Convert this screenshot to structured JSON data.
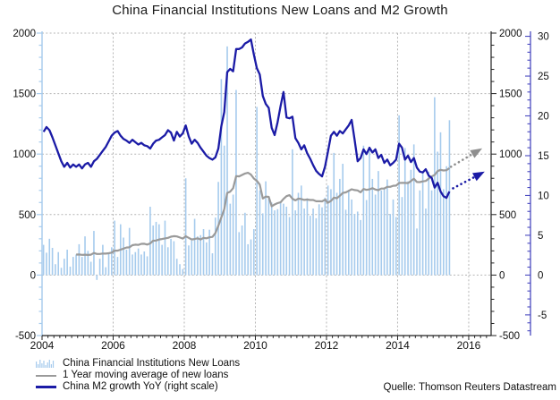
{
  "title": "China Financial Institutions New Loans and M2 Growth",
  "source": "Quelle: Thomson Reuters Datastream",
  "legend": [
    {
      "label": "China Financial Institutions New Loans",
      "type": "bars",
      "color": "#A6CBED"
    },
    {
      "label": "1 Year moving average of new loans",
      "type": "line",
      "color": "#9A9A9A"
    },
    {
      "label": "China M2 growth YoY (right scale)",
      "type": "line",
      "color": "#1B1BA6"
    }
  ],
  "chart_data": {
    "type": "bar",
    "title": "China Financial Institutions New Loans and M2 Growth",
    "x_start_year": 2004,
    "x_start_month": 1,
    "x_axis": {
      "tick_years": [
        2004,
        2006,
        2008,
        2010,
        2012,
        2014,
        2016
      ],
      "range": [
        2004,
        2016.63
      ],
      "vertical_grid_years": [
        2006,
        2008,
        2010,
        2012,
        2014,
        2016
      ]
    },
    "left_axis": {
      "tick_values": [
        -500,
        0,
        500,
        1000,
        1500,
        2000
      ],
      "range": [
        -500,
        2000
      ],
      "minor_step": 100,
      "axis_color": "#A6CBED",
      "grid_values": [
        0,
        500,
        1000,
        1500,
        2000
      ]
    },
    "right_axis_inner": {
      "tick_values": [
        -500,
        0,
        500,
        1000,
        1500,
        2000
      ],
      "range": [
        -500,
        2000
      ],
      "minor_step": 100,
      "axis_color": "#222222"
    },
    "right_axis_outer": {
      "tick_values": [
        -5,
        0,
        5,
        10,
        15,
        20,
        25,
        30
      ],
      "range": [
        -7.6,
        30.4
      ],
      "minor_step": 1,
      "axis_color": "#4A4AC0"
    },
    "grid_color": "#b5b5b5",
    "series": [
      {
        "name": "new_loans",
        "legend": "China Financial Institutions New Loans",
        "type": "bar",
        "scale": "left",
        "color": "#A6CBED",
        "monthly_values": [
          250,
          185,
          300,
          225,
          90,
          190,
          60,
          135,
          210,
          70,
          150,
          170,
          255,
          150,
          320,
          200,
          110,
          365,
          -40,
          135,
          250,
          65,
          185,
          230,
          450,
          150,
          420,
          310,
          210,
          390,
          170,
          190,
          220,
          170,
          195,
          155,
          565,
          410,
          440,
          420,
          250,
          450,
          230,
          300,
          280,
          135,
          90,
          50,
          800,
          245,
          285,
          465,
          320,
          330,
          380,
          270,
          375,
          180,
          475,
          770,
          1620,
          1070,
          1890,
          590,
          665,
          1530,
          355,
          410,
          515,
          255,
          295,
          380,
          1390,
          700,
          510,
          775,
          640,
          600,
          535,
          545,
          595,
          590,
          565,
          480,
          1040,
          535,
          680,
          740,
          550,
          635,
          490,
          550,
          470,
          585,
          560,
          640,
          740,
          710,
          1010,
          680,
          795,
          920,
          540,
          705,
          625,
          505,
          525,
          455,
          1070,
          620,
          1060,
          795,
          665,
          860,
          700,
          710,
          790,
          505,
          625,
          480,
          1320,
          645,
          1050,
          775,
          870,
          1080,
          385,
          700,
          855,
          550,
          855,
          700,
          1470,
          1020,
          1180,
          710,
          900,
          1280
        ]
      },
      {
        "name": "ma_12m",
        "legend": "1 Year moving average of new loans",
        "type": "line",
        "scale": "left",
        "color": "#9A9A9A",
        "derived": "trailing 12-month mean of new_loans"
      },
      {
        "name": "m2_yoy",
        "legend": "China M2 growth YoY (right scale)",
        "type": "line",
        "scale": "right",
        "color": "#1B1BA6",
        "monthly_values": [
          18.0,
          18.6,
          18.2,
          17.3,
          16.3,
          15.3,
          14.3,
          13.6,
          14.1,
          13.5,
          13.9,
          13.6,
          13.9,
          13.4,
          13.9,
          14.1,
          13.6,
          14.3,
          14.6,
          15.1,
          15.6,
          16.1,
          16.8,
          17.5,
          17.9,
          18.1,
          17.5,
          17.1,
          16.9,
          16.6,
          17.0,
          16.7,
          16.4,
          16.6,
          16.3,
          16.2,
          15.9,
          16.5,
          16.9,
          17.0,
          17.3,
          17.6,
          18.2,
          17.9,
          16.9,
          18.0,
          17.4,
          17.8,
          18.8,
          17.4,
          16.5,
          17.0,
          16.6,
          16.0,
          15.5,
          15.0,
          14.7,
          14.5,
          14.8,
          15.9,
          18.7,
          20.5,
          25.5,
          25.9,
          25.6,
          28.4,
          28.4,
          28.6,
          29.1,
          29.3,
          29.6,
          27.7,
          26.0,
          25.2,
          22.5,
          21.5,
          21.0,
          18.5,
          17.6,
          19.2,
          21.2,
          23.0,
          19.8,
          19.7,
          19.9,
          17.2,
          16.6,
          15.8,
          16.3,
          15.3,
          14.6,
          13.8,
          13.1,
          12.7,
          12.4,
          13.6,
          15.5,
          17.5,
          18.0,
          17.5,
          18.1,
          17.8,
          18.3,
          18.8,
          19.5,
          17.0,
          14.3,
          14.7,
          15.8,
          15.2,
          16.0,
          15.4,
          15.8,
          14.7,
          15.1,
          14.1,
          14.5,
          13.8,
          14.1,
          14.5,
          16.5,
          16.0,
          14.5,
          15.0,
          14.2,
          14.7,
          13.5,
          13.0,
          12.9,
          13.3,
          12.5,
          12.2,
          11.0,
          11.6,
          10.5,
          9.9,
          9.7,
          10.5
        ]
      }
    ],
    "arrows": [
      {
        "name": "loans-projection-arrow",
        "color": "#8F8F8F",
        "scale": "left",
        "from": {
          "year": 2015.5,
          "value": 895
        },
        "to": {
          "year": 2016.38,
          "value": 1048
        }
      },
      {
        "name": "m2-projection-arrow",
        "color": "#1B1BA6",
        "scale": "right",
        "from": {
          "year": 2015.56,
          "value": 10.9
        },
        "to": {
          "year": 2016.45,
          "value": 13.0
        }
      }
    ],
    "legend_position": "bottom-left",
    "grid": true
  }
}
